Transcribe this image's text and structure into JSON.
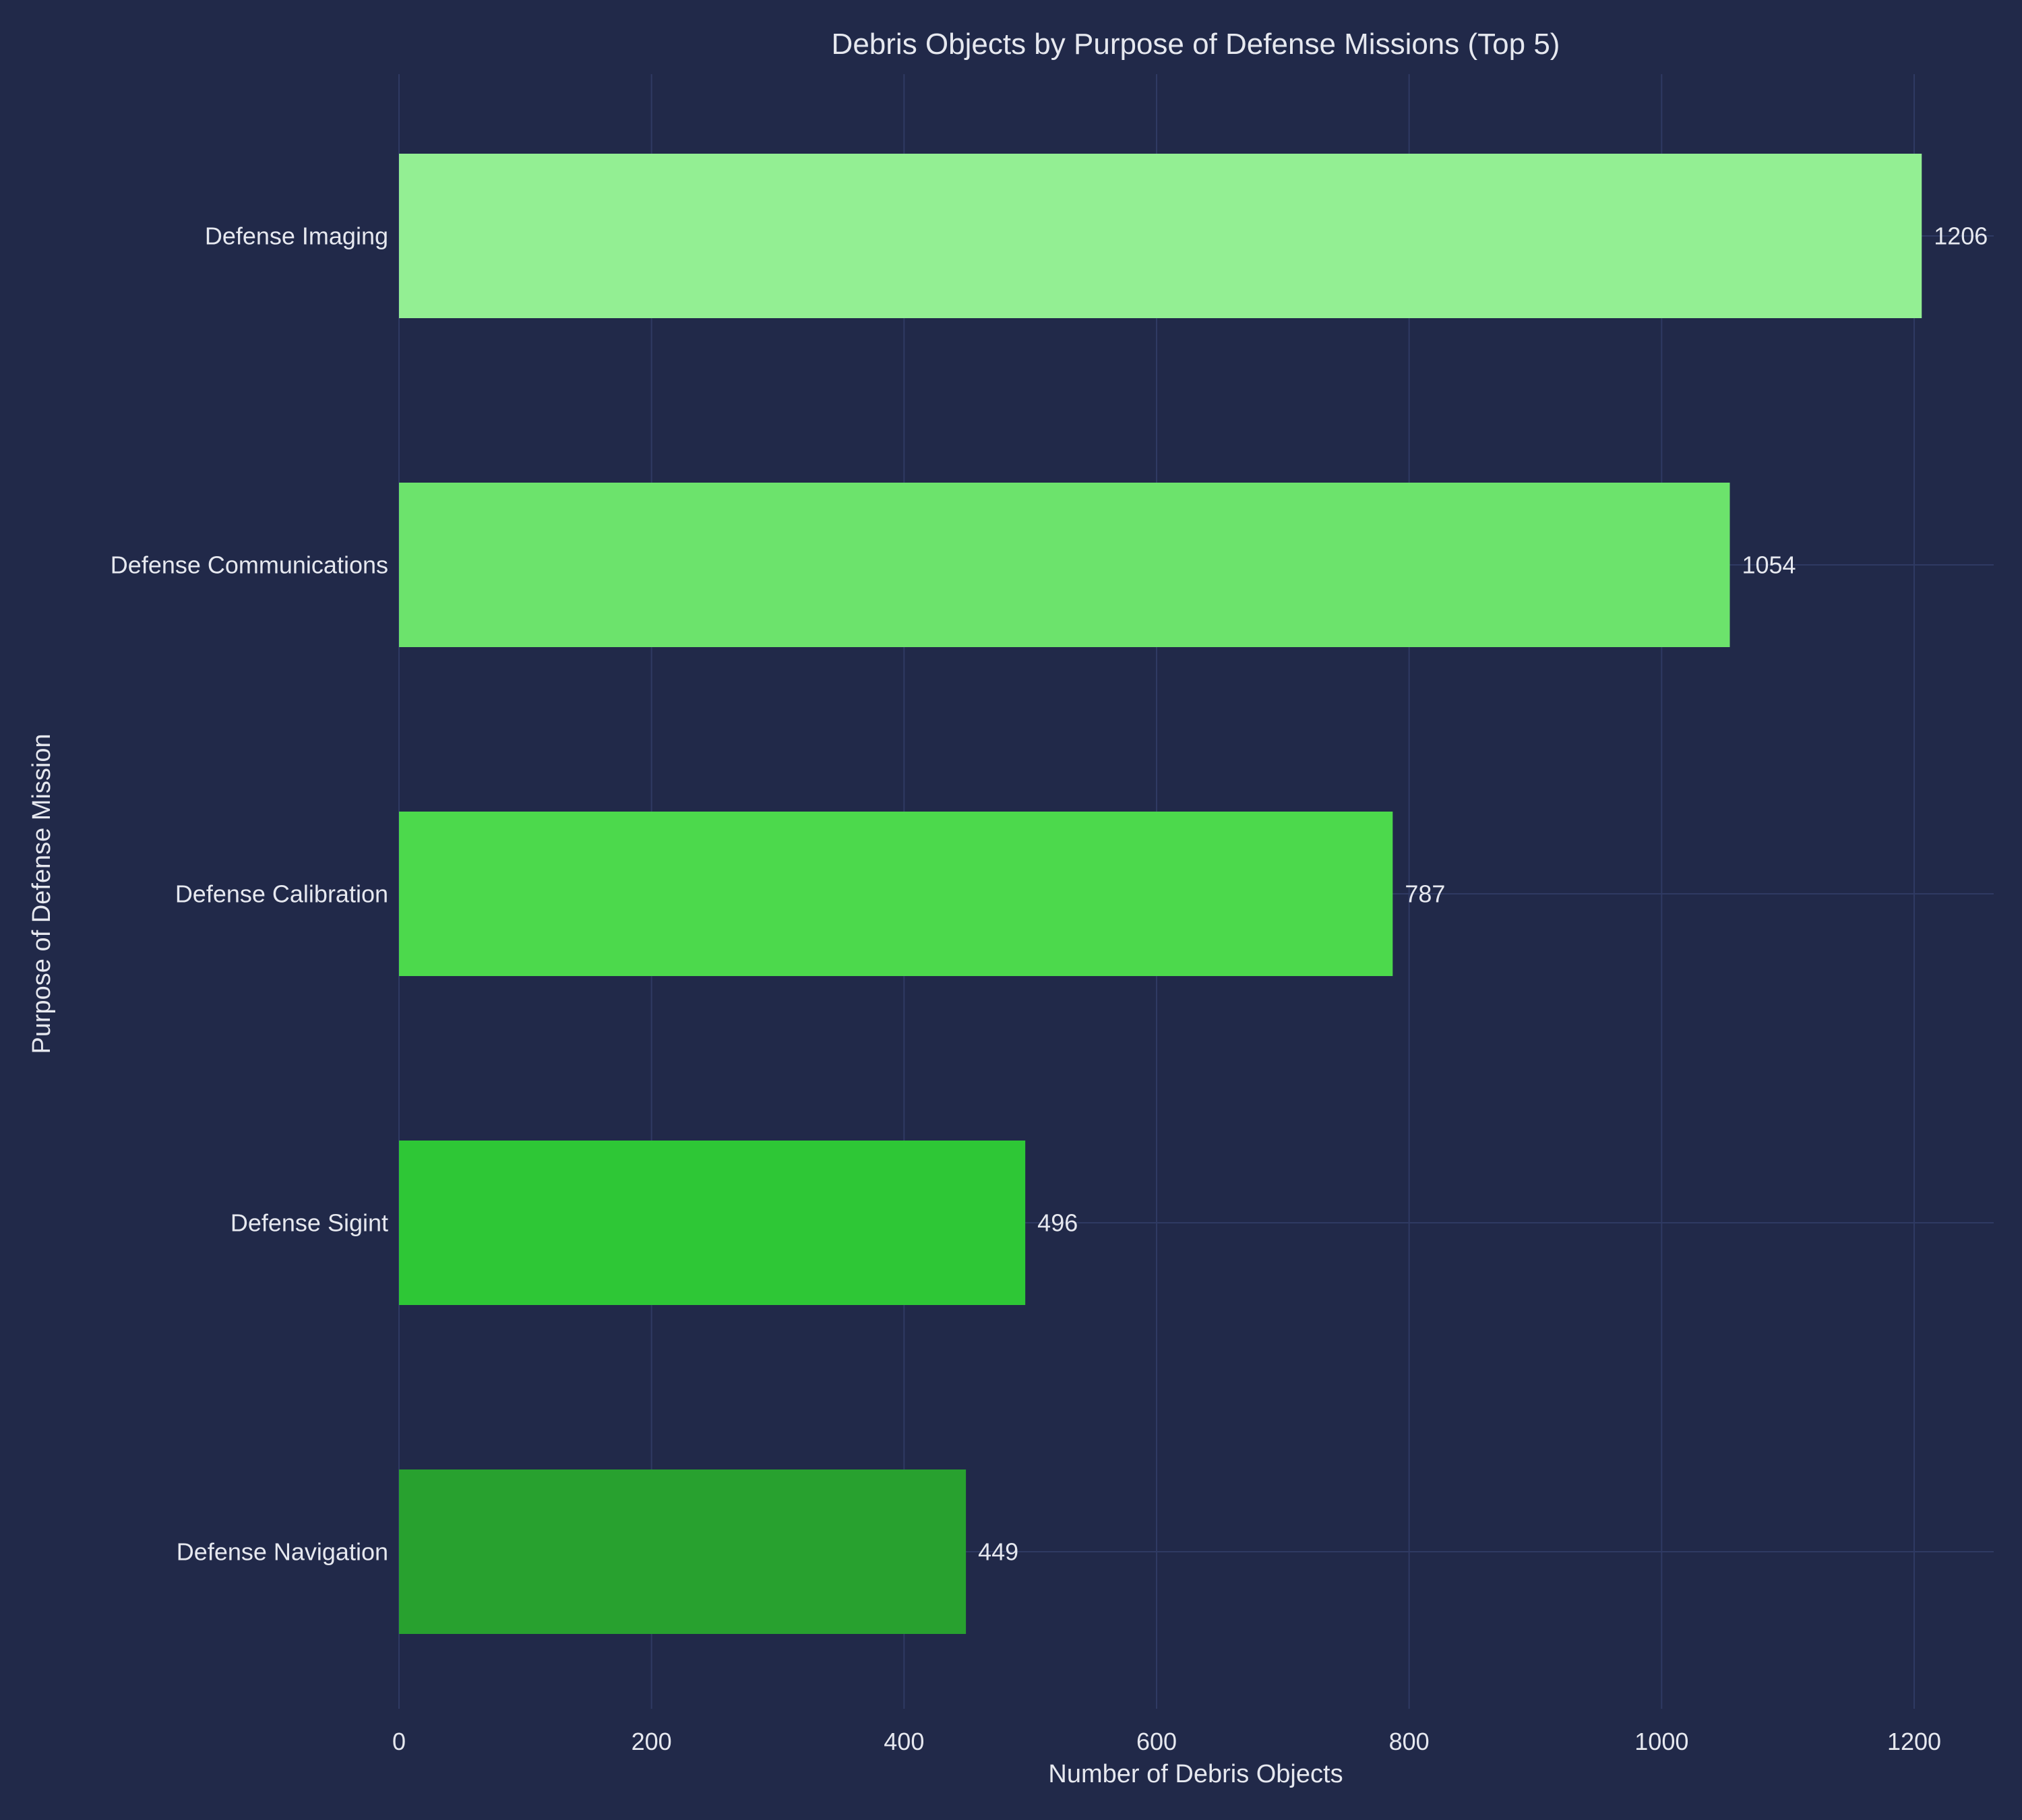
{
  "chart_data": {
    "type": "bar",
    "orientation": "horizontal",
    "title": "Debris Objects by Purpose of Defense Missions (Top 5)",
    "xlabel": "Number of Debris Objects",
    "ylabel": "Purpose of Defense Mission",
    "categories": [
      "Defense Imaging",
      "Defense Communications",
      "Defense Calibration",
      "Defense Sigint",
      "Defense Navigation"
    ],
    "values": [
      1206,
      1054,
      787,
      496,
      449
    ],
    "value_labels": [
      "1206",
      "1054",
      "787",
      "496",
      "449"
    ],
    "bar_colors": [
      "#93ef93",
      "#6ce36c",
      "#4cd94c",
      "#2ec736",
      "#28a12f"
    ],
    "xlim": [
      0,
      1267
    ],
    "xticks": [
      0,
      200,
      400,
      600,
      800,
      1000,
      1200
    ],
    "xtick_labels": [
      "0",
      "200",
      "400",
      "600",
      "800",
      "1000",
      "1200"
    ],
    "grid": true,
    "legend": "none"
  },
  "colors": {
    "background": "#212949",
    "grid": "#2f3a63",
    "text": "#e6e8ef"
  }
}
